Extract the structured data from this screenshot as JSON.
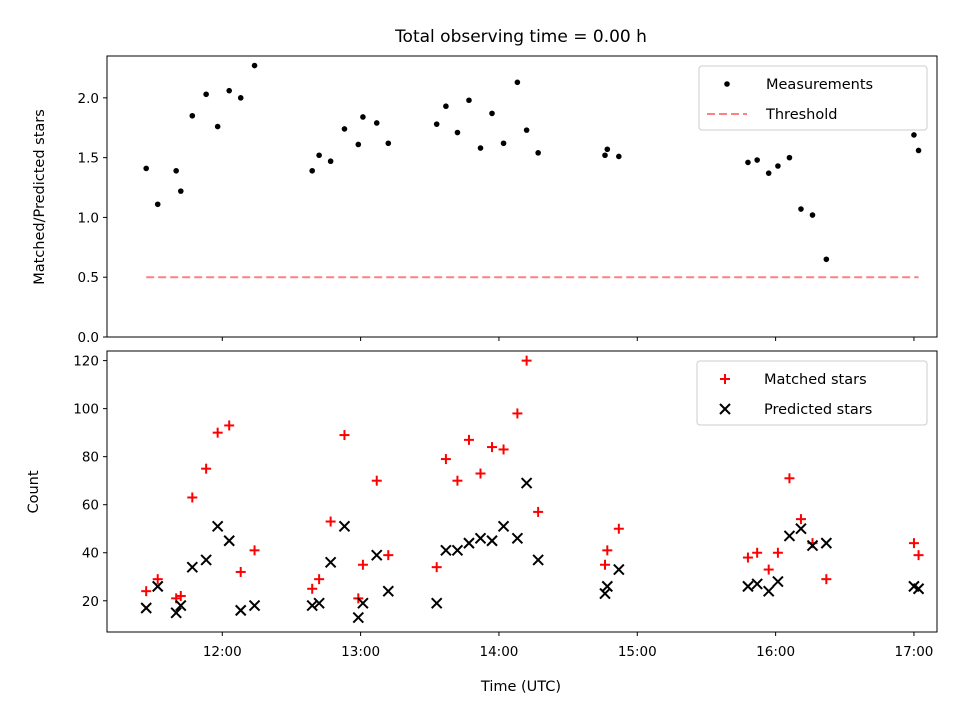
{
  "chart_data": [
    {
      "type": "scatter",
      "title": "Total observing time = 0.00 h",
      "xlabel": "",
      "ylabel": "Matched/Predicted stars",
      "xlim": [
        "11:10",
        "17:10"
      ],
      "ylim": [
        0,
        2.35
      ],
      "yticks": [
        "0.0",
        "0.5",
        "1.0",
        "1.5",
        "2.0"
      ],
      "xticks": [
        "12:00",
        "13:00",
        "14:00",
        "15:00",
        "16:00",
        "17:00"
      ],
      "legend": {
        "position": "top-right",
        "entries": [
          "Measurements",
          "Threshold"
        ]
      },
      "series": [
        {
          "name": "Measurements",
          "color": "#000000",
          "marker": "dot",
          "points": [
            [
              "11:27",
              1.41
            ],
            [
              "11:32",
              1.11
            ],
            [
              "11:40",
              1.39
            ],
            [
              "11:42",
              1.22
            ],
            [
              "11:47",
              1.85
            ],
            [
              "11:53",
              2.03
            ],
            [
              "11:58",
              1.76
            ],
            [
              "12:03",
              2.06
            ],
            [
              "12:08",
              2.0
            ],
            [
              "12:14",
              2.27
            ],
            [
              "12:39",
              1.39
            ],
            [
              "12:42",
              1.52
            ],
            [
              "12:47",
              1.47
            ],
            [
              "12:53",
              1.74
            ],
            [
              "12:59",
              1.61
            ],
            [
              "13:01",
              1.84
            ],
            [
              "13:07",
              1.79
            ],
            [
              "13:12",
              1.62
            ],
            [
              "13:33",
              1.78
            ],
            [
              "13:37",
              1.93
            ],
            [
              "13:42",
              1.71
            ],
            [
              "13:47",
              1.98
            ],
            [
              "13:52",
              1.58
            ],
            [
              "13:57",
              1.87
            ],
            [
              "14:02",
              1.62
            ],
            [
              "14:08",
              2.13
            ],
            [
              "14:12",
              1.73
            ],
            [
              "14:17",
              1.54
            ],
            [
              "14:46",
              1.52
            ],
            [
              "14:47",
              1.57
            ],
            [
              "14:52",
              1.51
            ],
            [
              "15:48",
              1.46
            ],
            [
              "15:52",
              1.48
            ],
            [
              "15:57",
              1.37
            ],
            [
              "16:01",
              1.43
            ],
            [
              "16:06",
              1.5
            ],
            [
              "16:11",
              1.07
            ],
            [
              "16:16",
              1.02
            ],
            [
              "16:22",
              0.65
            ],
            [
              "17:00",
              1.69
            ],
            [
              "17:02",
              1.56
            ]
          ]
        },
        {
          "name": "Threshold",
          "color": "#ff8080",
          "style": "dashed",
          "points": [
            [
              "11:27",
              0.5
            ],
            [
              "17:02",
              0.5
            ]
          ]
        }
      ]
    },
    {
      "type": "scatter",
      "title": "",
      "xlabel": "Time (UTC)",
      "ylabel": "Count",
      "xlim": [
        "11:10",
        "17:10"
      ],
      "ylim": [
        7,
        124
      ],
      "yticks": [
        "20",
        "40",
        "60",
        "80",
        "100",
        "120"
      ],
      "xticks": [
        "12:00",
        "13:00",
        "14:00",
        "15:00",
        "16:00",
        "17:00"
      ],
      "legend": {
        "position": "top-right",
        "entries": [
          "Matched stars",
          "Predicted stars"
        ]
      },
      "series": [
        {
          "name": "Matched stars",
          "color": "#ff0000",
          "marker": "plus",
          "points": [
            [
              "11:27",
              24
            ],
            [
              "11:32",
              29
            ],
            [
              "11:40",
              21
            ],
            [
              "11:42",
              22
            ],
            [
              "11:47",
              63
            ],
            [
              "11:53",
              75
            ],
            [
              "11:58",
              90
            ],
            [
              "12:03",
              93
            ],
            [
              "12:08",
              32
            ],
            [
              "12:14",
              41
            ],
            [
              "12:39",
              25
            ],
            [
              "12:42",
              29
            ],
            [
              "12:47",
              53
            ],
            [
              "12:53",
              89
            ],
            [
              "12:59",
              21
            ],
            [
              "13:01",
              35
            ],
            [
              "13:07",
              70
            ],
            [
              "13:12",
              39
            ],
            [
              "13:33",
              34
            ],
            [
              "13:37",
              79
            ],
            [
              "13:42",
              70
            ],
            [
              "13:47",
              87
            ],
            [
              "13:52",
              73
            ],
            [
              "13:57",
              84
            ],
            [
              "14:02",
              83
            ],
            [
              "14:08",
              98
            ],
            [
              "14:12",
              120
            ],
            [
              "14:17",
              57
            ],
            [
              "14:46",
              35
            ],
            [
              "14:47",
              41
            ],
            [
              "14:52",
              50
            ],
            [
              "15:48",
              38
            ],
            [
              "15:52",
              40
            ],
            [
              "15:57",
              33
            ],
            [
              "16:01",
              40
            ],
            [
              "16:06",
              71
            ],
            [
              "16:11",
              54
            ],
            [
              "16:16",
              44
            ],
            [
              "16:22",
              29
            ],
            [
              "17:00",
              44
            ],
            [
              "17:02",
              39
            ]
          ]
        },
        {
          "name": "Predicted stars",
          "color": "#000000",
          "marker": "x",
          "points": [
            [
              "11:27",
              17
            ],
            [
              "11:32",
              26
            ],
            [
              "11:40",
              15
            ],
            [
              "11:42",
              18
            ],
            [
              "11:47",
              34
            ],
            [
              "11:53",
              37
            ],
            [
              "11:58",
              51
            ],
            [
              "12:03",
              45
            ],
            [
              "12:08",
              16
            ],
            [
              "12:14",
              18
            ],
            [
              "12:39",
              18
            ],
            [
              "12:42",
              19
            ],
            [
              "12:47",
              36
            ],
            [
              "12:53",
              51
            ],
            [
              "12:59",
              13
            ],
            [
              "13:01",
              19
            ],
            [
              "13:07",
              39
            ],
            [
              "13:12",
              24
            ],
            [
              "13:33",
              19
            ],
            [
              "13:37",
              41
            ],
            [
              "13:42",
              41
            ],
            [
              "13:47",
              44
            ],
            [
              "13:52",
              46
            ],
            [
              "13:57",
              45
            ],
            [
              "14:02",
              51
            ],
            [
              "14:08",
              46
            ],
            [
              "14:12",
              69
            ],
            [
              "14:17",
              37
            ],
            [
              "14:46",
              23
            ],
            [
              "14:47",
              26
            ],
            [
              "14:52",
              33
            ],
            [
              "15:48",
              26
            ],
            [
              "15:52",
              27
            ],
            [
              "15:57",
              24
            ],
            [
              "16:01",
              28
            ],
            [
              "16:06",
              47
            ],
            [
              "16:11",
              50
            ],
            [
              "16:16",
              43
            ],
            [
              "16:22",
              44
            ],
            [
              "17:00",
              26
            ],
            [
              "17:02",
              25
            ]
          ]
        }
      ]
    }
  ]
}
